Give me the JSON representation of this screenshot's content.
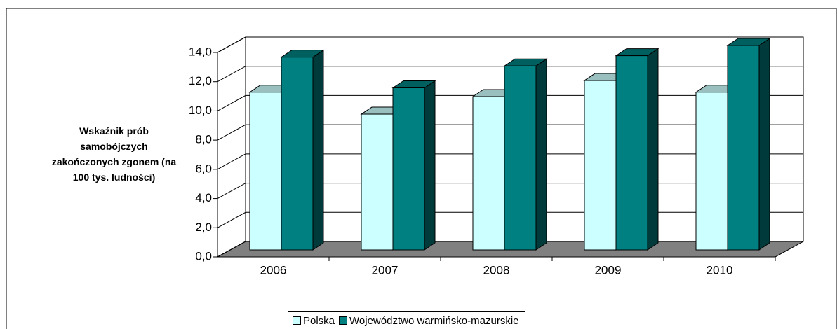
{
  "chart_data": {
    "type": "bar3d",
    "y_axis_label": "Wskaźnik prób samobójczych zakończonych zgonem (na 100 tys. ludności)",
    "categories": [
      "2006",
      "2007",
      "2008",
      "2009",
      "2010"
    ],
    "series": [
      {
        "name": "Polska",
        "color": "#ccffff",
        "values": [
          10.8,
          9.3,
          10.5,
          11.6,
          10.8
        ]
      },
      {
        "name": "Województwo warmińsko-mazurskie",
        "color": "#008080",
        "values": [
          13.2,
          11.1,
          12.6,
          13.3,
          14.0
        ]
      }
    ],
    "ylim": [
      0,
      14
    ],
    "yticks": [
      {
        "value": 0,
        "label": "0,0"
      },
      {
        "value": 2,
        "label": "2,0"
      },
      {
        "value": 4,
        "label": "4,0"
      },
      {
        "value": 6,
        "label": "6,0"
      },
      {
        "value": 8,
        "label": "8,0"
      },
      {
        "value": 10,
        "label": "10,0"
      },
      {
        "value": 12,
        "label": "12,0"
      },
      {
        "value": 14,
        "label": "14,0"
      }
    ],
    "grid": true
  }
}
